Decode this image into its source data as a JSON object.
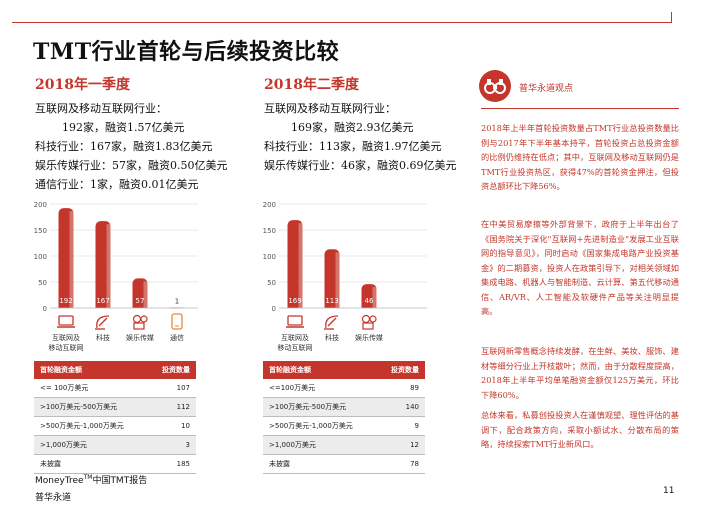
{
  "page": {
    "title": "TMT行业首轮与后续投资比较",
    "page_number": "11",
    "footer_line1": "MoneyTree",
    "footer_tm": "TM",
    "footer_line1_suffix": "中国TMT报告",
    "footer_line2": "普华永道"
  },
  "colors": {
    "accent": "#c4362b",
    "light_red": "#e8a79e",
    "bar_main": "#c4362b",
    "table_header": "#c4362b"
  },
  "q1": {
    "heading": "2018年一季度",
    "stats": [
      "互联网及移动互联网行业：",
      "192家，融资1.57亿美元",
      "科技行业：167家，融资1.83亿美元",
      "娱乐传媒行业：57家，融资0.50亿美元",
      "通信行业：1家，融资0.01亿美元"
    ],
    "table": {
      "headers": [
        "首轮融资金额",
        "投资数量"
      ],
      "rows": [
        [
          "<= 100万美元",
          "107"
        ],
        [
          ">100万美元-500万美元",
          "112"
        ],
        [
          ">500万美元-1,000万美元",
          "10"
        ],
        [
          ">1,000万美元",
          "3"
        ],
        [
          "未披露",
          "185"
        ]
      ]
    }
  },
  "q2": {
    "heading": "2018年二季度",
    "stats": [
      "互联网及移动互联网行业：",
      "169家，融资2.93亿美元",
      "科技行业：113家，融资1.97亿美元",
      "娱乐传媒行业：46家，融资0.69亿美元"
    ],
    "table": {
      "headers": [
        "首轮融资金额",
        "投资数量"
      ],
      "rows": [
        [
          "<=100万美元",
          "89"
        ],
        [
          ">100万美元-500万美元",
          "140"
        ],
        [
          ">500万美元-1,000万美元",
          "9"
        ],
        [
          ">1,000万美元",
          "12"
        ],
        [
          "未披露",
          "78"
        ]
      ]
    }
  },
  "chart_data": [
    {
      "type": "bar",
      "ylim": [
        0,
        200
      ],
      "yticks": [
        "200",
        "150",
        "100",
        "50",
        "0"
      ],
      "categories": [
        "互联网及移动互联网",
        "科技",
        "娱乐传媒",
        "通信"
      ],
      "category_icons": [
        "laptop-icon",
        "satellite-icon",
        "film-icon",
        "phone-icon"
      ],
      "values": [
        192,
        167,
        57,
        1
      ],
      "value_labels": [
        "192",
        "167",
        "57",
        "1"
      ]
    },
    {
      "type": "bar",
      "ylim": [
        0,
        200
      ],
      "yticks": [
        "200",
        "150",
        "100",
        "50",
        "0"
      ],
      "categories": [
        "互联网及移动互联网",
        "科技",
        "娱乐传媒"
      ],
      "category_icons": [
        "laptop-icon",
        "satellite-icon",
        "film-icon"
      ],
      "values": [
        169,
        113,
        46
      ],
      "value_labels": [
        "169",
        "113",
        "46"
      ]
    }
  ],
  "insight": {
    "label": "普华永道观点",
    "icon": "binoculars-icon",
    "paragraphs": [
      "2018年上半年首轮投资数量占TMT行业总投资数量比例与2017年下半年基本持平，首轮投资占总投资金额的比例仍维持在低点；其中，互联网及移动互联网仍是TMT行业投资热区，获得47%的首轮资金押注，但投资总额环比下降56%。",
      "在中美贸易摩擦等外部背景下，政府于上半年出台了《国务院关于深化\"互联网+先进制造业\"发展工业互联网的指导意见》，同时启动《国家集成电路产业投资基金》的二期募资，投资人在政策引导下，对相关领域如集成电路、机器人与智能制造、云计算、第五代移动通信、AR/VR、人工智能及软硬件产品等关注明显提高。",
      "互联网新零售概念持续发酵，在生鲜、美妆、服饰、建材等细分行业上开枝散叶；然而，由于分散程度提高，2018年上半年平均单笔融资金额仅125万美元，环比下降60%。",
      "总体来看，私募创投投资人在谨慎观望、理性评估的基调下，配合政策方向，采取小额试水、分散布局的策略，持续探索TMT行业新风口。"
    ]
  }
}
